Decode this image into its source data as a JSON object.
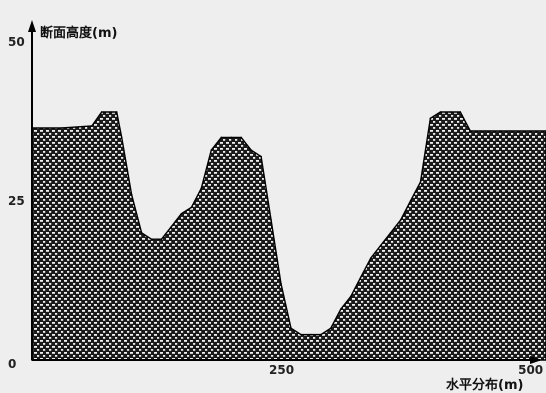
{
  "chart_data": {
    "type": "area",
    "title": "",
    "ylabel": "断面高度(m)",
    "xlabel": "水平分布(m)",
    "xlim": [
      0,
      516
    ],
    "ylim": [
      0,
      50
    ],
    "yticks": [
      "0",
      "25",
      "50"
    ],
    "xticks": [
      "250",
      "500"
    ],
    "x": [
      0,
      30,
      60,
      70,
      80,
      85,
      90,
      100,
      110,
      120,
      130,
      140,
      150,
      160,
      170,
      180,
      190,
      200,
      210,
      220,
      230,
      240,
      250,
      260,
      270,
      280,
      290,
      300,
      310,
      320,
      330,
      340,
      350,
      360,
      370,
      380,
      390,
      400,
      410,
      420,
      430,
      440,
      450,
      455,
      460,
      470,
      480,
      516
    ],
    "y": [
      36.5,
      36.5,
      36.8,
      39,
      39,
      39,
      35,
      26,
      20,
      19,
      19,
      21,
      23,
      24,
      27,
      33,
      35,
      35,
      35,
      33,
      32,
      22,
      12,
      5,
      4,
      4,
      4,
      5,
      8,
      10,
      13,
      16,
      18,
      20,
      22,
      25,
      28,
      38,
      39,
      39,
      39,
      36,
      36,
      36,
      36,
      36,
      36,
      36
    ],
    "fill_pattern": "brick-hatch",
    "colors": {
      "fill_dark": "#1a1a1a",
      "fill_light": "#f0f0f0",
      "axis": "#000000",
      "background": "#eeeeee"
    },
    "grid": false
  }
}
